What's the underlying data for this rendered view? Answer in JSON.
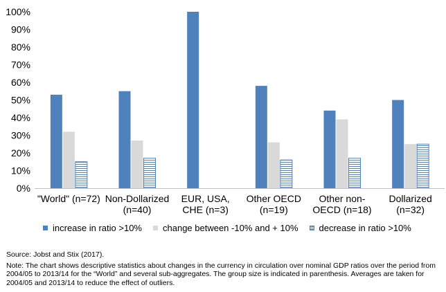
{
  "chart_data": {
    "type": "bar",
    "title": "",
    "xlabel": "",
    "ylabel": "",
    "ylim": [
      0,
      100
    ],
    "yticks": [
      "0%",
      "10%",
      "20%",
      "30%",
      "40%",
      "50%",
      "60%",
      "70%",
      "80%",
      "90%",
      "100%"
    ],
    "categories": [
      [
        "\"World\" (n=72)"
      ],
      [
        "Non-Dollarized",
        "(n=40)"
      ],
      [
        "EUR, USA,",
        "CHE (n=3)"
      ],
      [
        "Other OECD",
        "(n=19)"
      ],
      [
        "Other non-",
        "OECD (n=18)"
      ],
      [
        "Dollarized",
        "(n=32)"
      ]
    ],
    "series": [
      {
        "name": "increase in ratio >10%",
        "color": "#4f81bd",
        "pattern": "solid",
        "values": [
          53,
          55,
          100,
          58,
          44,
          50
        ]
      },
      {
        "name": "change between -10% and + 10%",
        "color": "#d9d9d9",
        "pattern": "solid",
        "values": [
          32,
          27,
          0,
          26,
          39,
          25
        ]
      },
      {
        "name": "decrease in ratio >10%",
        "color": "#4f81bd",
        "pattern": "horizontal-lines",
        "values": [
          15,
          17,
          0,
          16,
          17,
          25
        ]
      }
    ],
    "grid": false,
    "legend_position": "bottom"
  },
  "legend": {
    "increase": "increase in ratio >10%",
    "change": "change between -10% and + 10%",
    "decrease": "decrease in ratio >10%"
  },
  "notes": {
    "source": "Source: Jobst and Stix (2017).",
    "note": "Note: The chart shows descriptive statistics about changes in the currency in circulation over nominal GDP ratios over the period from 2004/05 to 2013/14 for the “World” and several sub-aggregates. The group size is indicated in parenthesis. Averages are taken for 2004/05 and 2013/14 to reduce the effect of outliers."
  }
}
